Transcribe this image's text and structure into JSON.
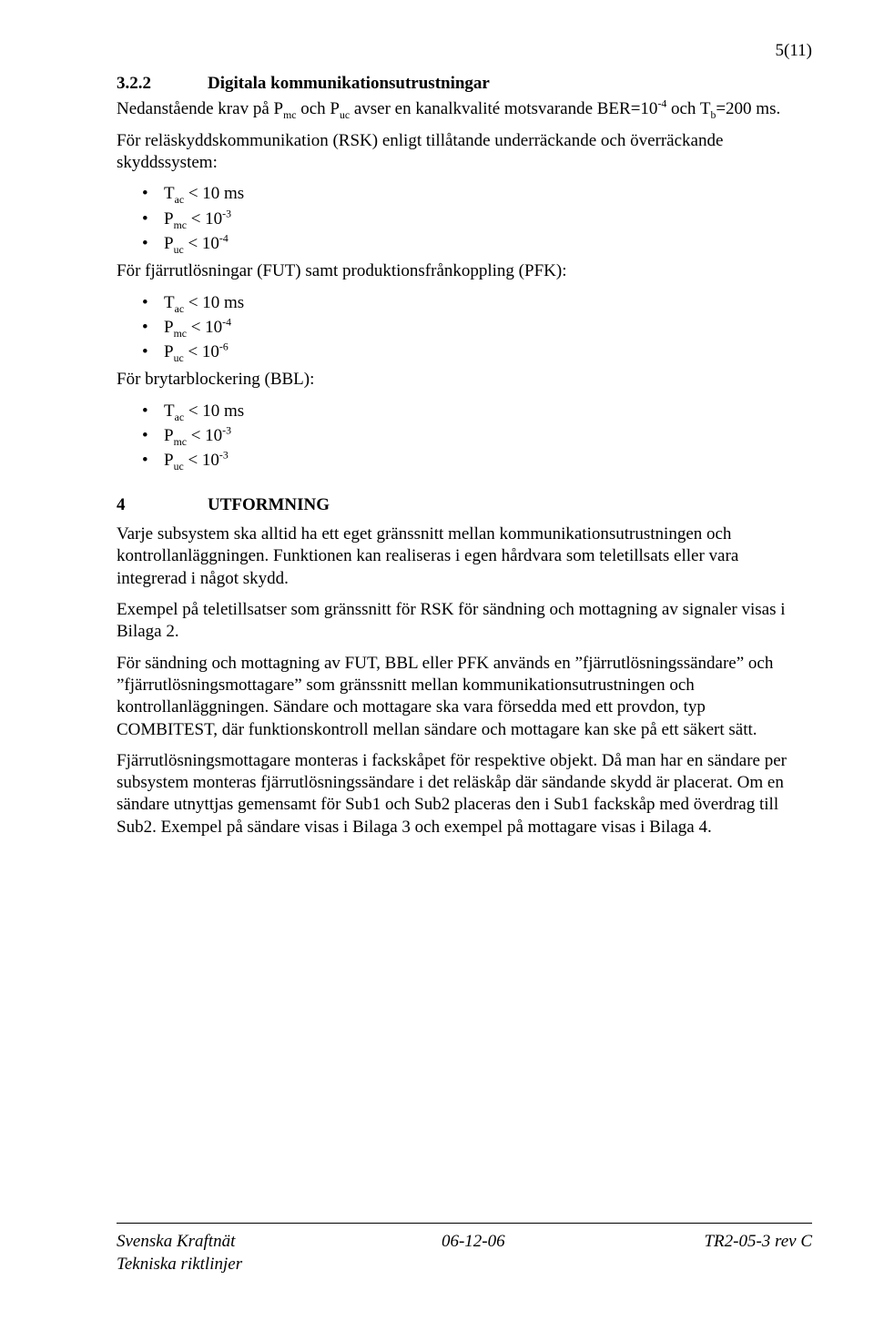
{
  "page_number": "5(11)",
  "section_322": {
    "num": "3.2.2",
    "title": "Digitala kommunikationsutrustningar",
    "intro_html": "Nedanstående krav på P<sub>mc</sub> och P<sub>uc</sub> avser en kanalkvalité motsvarande BER=10<sup>-4</sup> och T<sub>b</sub>=200 ms.",
    "para2": "För reläskyddskommunikation (RSK) enligt tillåtande underräckande och överräckande skyddssystem:",
    "list1": [
      "T<sub>ac</sub> < 10 ms",
      "P<sub>mc</sub> < 10<sup>-3</sup>",
      "P<sub>uc</sub> < 10<sup>-4</sup>"
    ],
    "para3": "För fjärrutlösningar (FUT) samt produktionsfrånkoppling (PFK):",
    "list2": [
      "T<sub>ac</sub> < 10 ms",
      "P<sub>mc</sub> < 10<sup>-4</sup>",
      "P<sub>uc</sub> < 10<sup>-6</sup>"
    ],
    "para4": "För brytarblockering (BBL):",
    "list3": [
      "T<sub>ac</sub> < 10 ms",
      "P<sub>mc</sub> < 10<sup>-3</sup>",
      "P<sub>uc</sub> < 10<sup>-3</sup>"
    ]
  },
  "section_4": {
    "num": "4",
    "title": "UTFORMNING",
    "p1": "Varje subsystem ska alltid ha ett eget gränssnitt mellan kommunikations­utrustningen och kontrollanläggningen. Funktionen kan realiseras i egen hårdvara som teletillsats eller vara integrerad i något skydd.",
    "p2": "Exempel på teletillsatser som gränssnitt för RSK för sändning och mottagning av signaler visas i Bilaga 2.",
    "p3": "För sändning och mottagning av FUT, BBL eller PFK används en ”fjärrutlösningssändare” och ”fjärrutlösningsmottagare” som gränssnitt mellan kommunikationsutrustningen och kontrollanläggningen. Sändare och mottagare ska vara försedda med ett provdon, typ COMBITEST, där funktionskontroll mellan sändare och mottagare kan ske på ett säkert sätt.",
    "p4": "Fjärrutlösningsmottagare monteras i fackskåpet för respektive objekt. Då man har en sändare per subsystem monteras fjärrutlösningssändare i det reläskåp där sändande skydd är placerat. Om en sändare utnyttjas gemensamt för Sub1 och Sub2 placeras den i Sub1 fackskåp med överdrag till Sub2. Exempel på sändare visas i Bilaga 3 och exempel på mottagare visas i Bilaga 4."
  },
  "footer": {
    "left1": "Svenska Kraftnät",
    "left2": "Tekniska riktlinjer",
    "mid": "06-12-06",
    "right": "TR2-05-3 rev C"
  }
}
